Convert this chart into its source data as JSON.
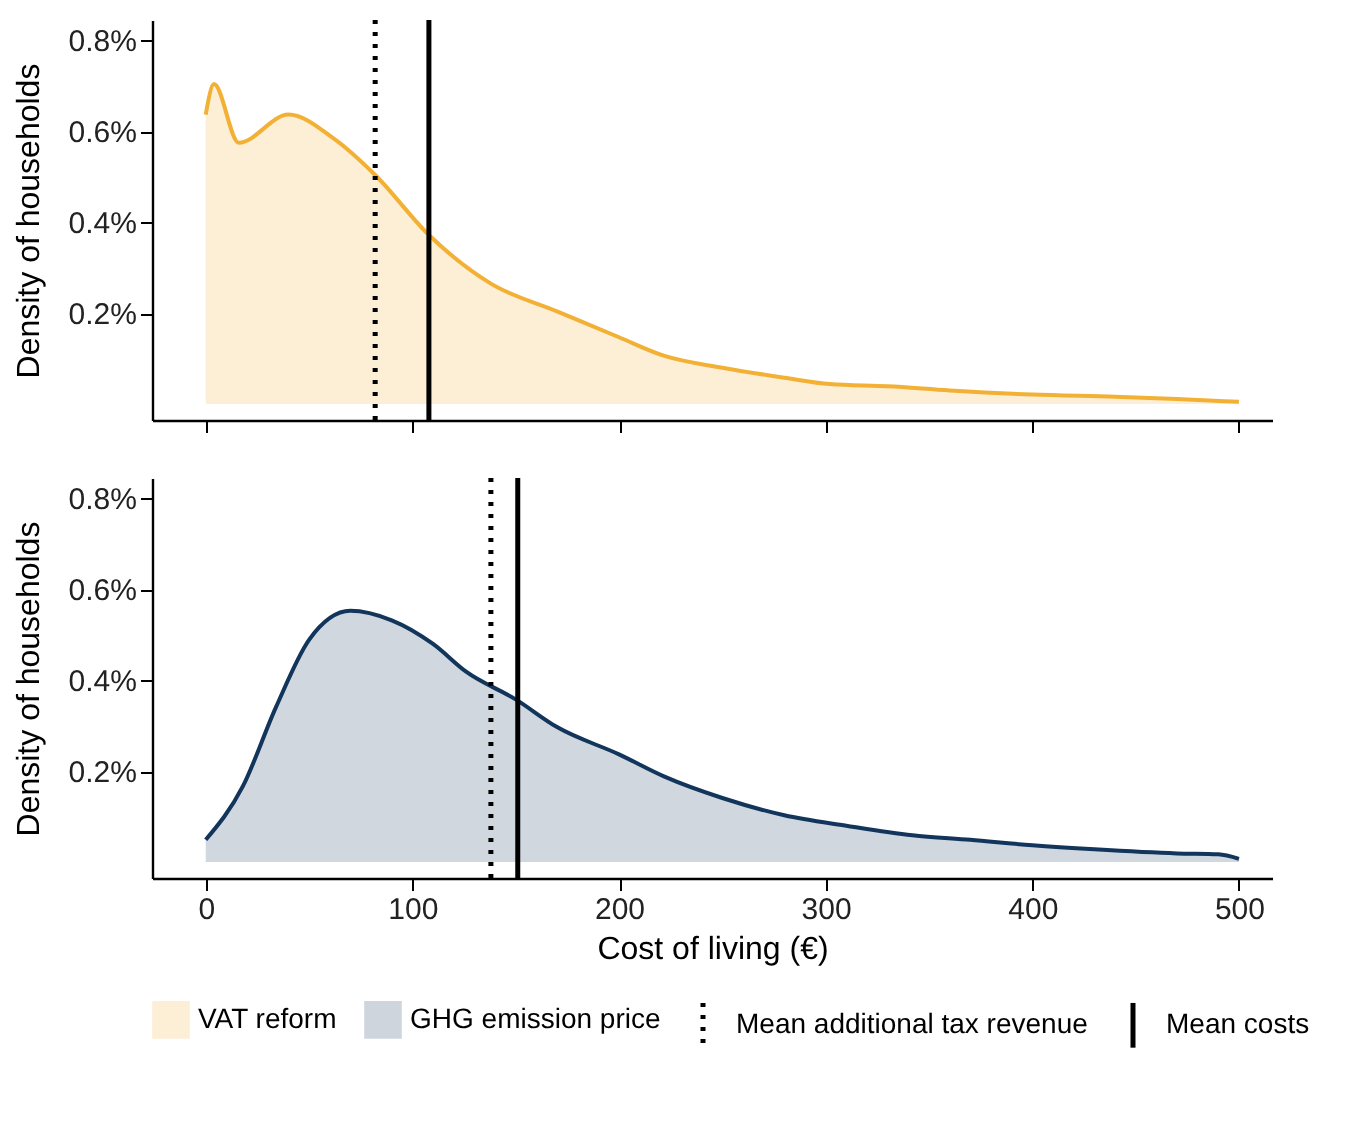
{
  "chart_data": [
    {
      "type": "area",
      "ylabel": "Density of households",
      "xlim": [
        -26,
        516
      ],
      "ylim": [
        -0.035,
        0.845
      ],
      "xticks": [
        {
          "value": 0,
          "label": null
        },
        {
          "value": 100,
          "label": null
        },
        {
          "value": 200,
          "label": null
        },
        {
          "value": 300,
          "label": null
        },
        {
          "value": 400,
          "label": null
        },
        {
          "value": 500,
          "label": null
        }
      ],
      "yticks": [
        {
          "value": 0.2,
          "label": "0.2%"
        },
        {
          "value": 0.4,
          "label": "0.4%"
        },
        {
          "value": 0.6,
          "label": "0.6%"
        },
        {
          "value": 0.8,
          "label": "0.8%"
        }
      ],
      "tick_labels": "y",
      "grid": false,
      "legend": "bottom",
      "series": [
        {
          "name": "VAT reform",
          "color": "#f2b134",
          "x": [
            0,
            4,
            16,
            40,
            62,
            82,
            108,
            138,
            170,
            200,
            222,
            250,
            280,
            302,
            330,
            360,
            400,
            440,
            470,
            500
          ],
          "values": [
            0.637,
            0.704,
            0.575,
            0.637,
            0.584,
            0.504,
            0.372,
            0.265,
            0.204,
            0.147,
            0.106,
            0.08,
            0.058,
            0.044,
            0.039,
            0.03,
            0.021,
            0.016,
            0.011,
            0.005
          ]
        }
      ],
      "ref_lines": [
        {
          "axis": "x",
          "value": 82,
          "label": "Mean additional tax revenue",
          "line_style": "dotted",
          "color": "#000000"
        },
        {
          "axis": "x",
          "value": 108,
          "label": "Mean costs",
          "line_style": "solid",
          "color": "#000000"
        }
      ]
    },
    {
      "type": "area",
      "xlabel": "Cost of living (€)",
      "ylabel": "Density of households",
      "xlim": [
        -26,
        516
      ],
      "ylim": [
        -0.035,
        0.845
      ],
      "xticks": [
        0,
        100,
        200,
        300,
        400,
        500
      ],
      "yticks": [
        {
          "value": 0.2,
          "label": "0.2%"
        },
        {
          "value": 0.4,
          "label": "0.4%"
        },
        {
          "value": 0.6,
          "label": "0.6%"
        },
        {
          "value": 0.8,
          "label": "0.8%"
        }
      ],
      "grid": false,
      "legend": "bottom",
      "series": [
        {
          "name": "GHG emission price",
          "color": "#12355b",
          "x": [
            0,
            18,
            34,
            50,
            70,
            90,
            110,
            126,
            150,
            170,
            200,
            222,
            250,
            280,
            310,
            342,
            370,
            400,
            430,
            470,
            490,
            500
          ],
          "values": [
            0.049,
            0.167,
            0.341,
            0.489,
            0.553,
            0.532,
            0.48,
            0.419,
            0.358,
            0.297,
            0.237,
            0.188,
            0.141,
            0.103,
            0.08,
            0.059,
            0.049,
            0.037,
            0.028,
            0.019,
            0.017,
            0.007
          ]
        }
      ],
      "ref_lines": [
        {
          "axis": "x",
          "value": 138,
          "line_style": "dotted",
          "color": "#000000"
        },
        {
          "axis": "x",
          "value": 151,
          "line_style": "solid",
          "color": "#000000"
        }
      ]
    }
  ]
}
